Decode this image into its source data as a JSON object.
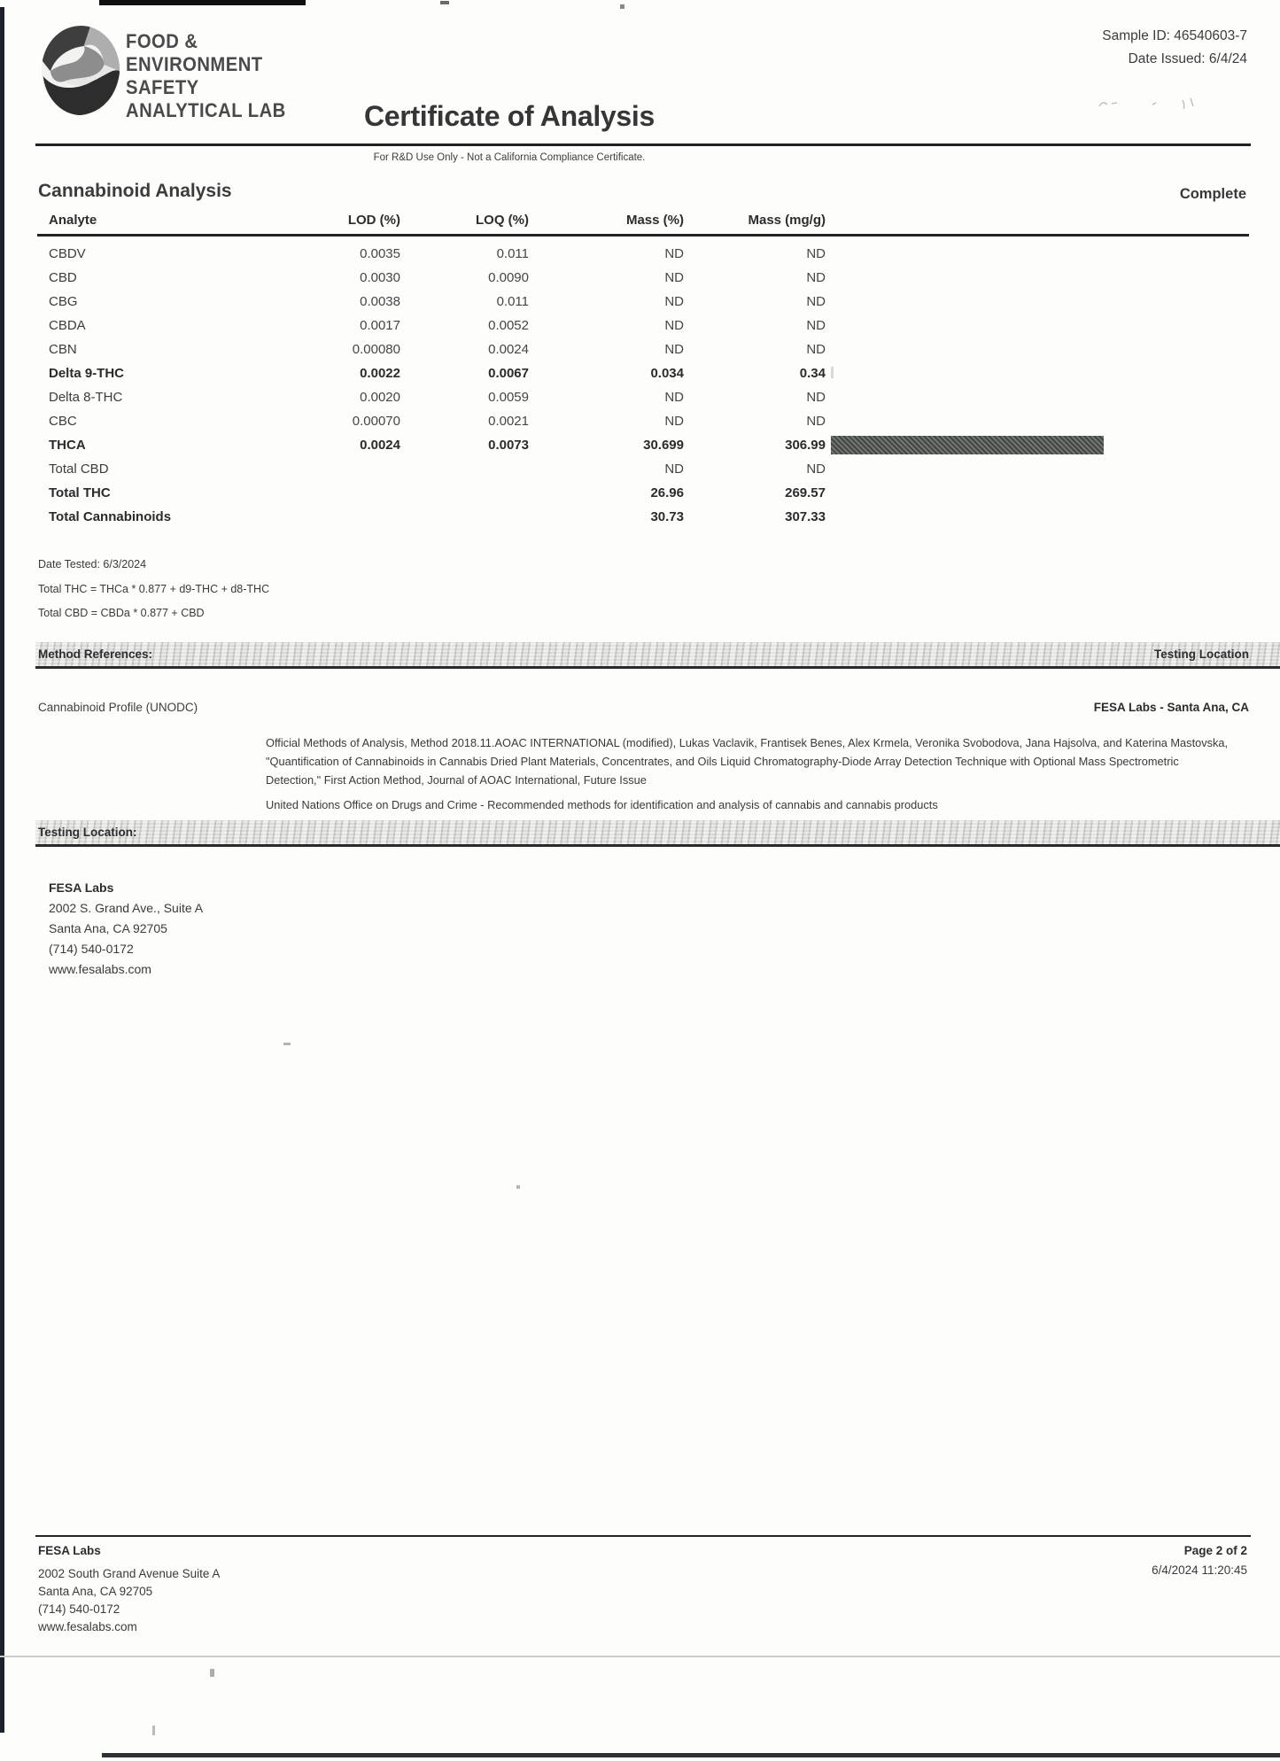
{
  "header": {
    "lab_name_lines": [
      "FOOD &",
      "ENVIRONMENT",
      "SAFETY",
      "ANALYTICAL LAB"
    ],
    "title": "Certificate of Analysis",
    "sample_id": "Sample ID: 46540603-7",
    "date_issued": "Date Issued: 6/4/24",
    "disclaimer": "For R&D Use Only - Not a California Compliance Certificate."
  },
  "section": {
    "title": "Cannabinoid Analysis",
    "status": "Complete"
  },
  "table": {
    "columns": [
      "Analyte",
      "LOD (%)",
      "LOQ (%)",
      "Mass (%)",
      "Mass (mg/g)"
    ],
    "rows": [
      {
        "analyte": "CBDV",
        "lod": "0.0035",
        "loq": "0.011",
        "mass_pct": "ND",
        "mass_mgg": "ND",
        "bold": false,
        "bar": false
      },
      {
        "analyte": "CBD",
        "lod": "0.0030",
        "loq": "0.0090",
        "mass_pct": "ND",
        "mass_mgg": "ND",
        "bold": false,
        "bar": false
      },
      {
        "analyte": "CBG",
        "lod": "0.0038",
        "loq": "0.011",
        "mass_pct": "ND",
        "mass_mgg": "ND",
        "bold": false,
        "bar": false
      },
      {
        "analyte": "CBDA",
        "lod": "0.0017",
        "loq": "0.0052",
        "mass_pct": "ND",
        "mass_mgg": "ND",
        "bold": false,
        "bar": false
      },
      {
        "analyte": "CBN",
        "lod": "0.00080",
        "loq": "0.0024",
        "mass_pct": "ND",
        "mass_mgg": "ND",
        "bold": false,
        "bar": false
      },
      {
        "analyte": "Delta 9-THC",
        "lod": "0.0022",
        "loq": "0.0067",
        "mass_pct": "0.034",
        "mass_mgg": "0.34",
        "bold": true,
        "bar": false
      },
      {
        "analyte": "Delta 8-THC",
        "lod": "0.0020",
        "loq": "0.0059",
        "mass_pct": "ND",
        "mass_mgg": "ND",
        "bold": false,
        "bar": false
      },
      {
        "analyte": "CBC",
        "lod": "0.00070",
        "loq": "0.0021",
        "mass_pct": "ND",
        "mass_mgg": "ND",
        "bold": false,
        "bar": false
      },
      {
        "analyte": "THCA",
        "lod": "0.0024",
        "loq": "0.0073",
        "mass_pct": "30.699",
        "mass_mgg": "306.99",
        "bold": true,
        "bar": true
      },
      {
        "analyte": "Total CBD",
        "lod": "",
        "loq": "",
        "mass_pct": "ND",
        "mass_mgg": "ND",
        "bold": false,
        "bar": false
      },
      {
        "analyte": "Total THC",
        "lod": "",
        "loq": "",
        "mass_pct": "26.96",
        "mass_mgg": "269.57",
        "bold": true,
        "bar": false
      },
      {
        "analyte": "Total Cannabinoids",
        "lod": "",
        "loq": "",
        "mass_pct": "30.73",
        "mass_mgg": "307.33",
        "bold": true,
        "bar": false
      }
    ]
  },
  "notes": {
    "date_tested": "Date Tested: 6/3/2024",
    "total_thc_formula": "Total THC = THCa * 0.877 + d9-THC + d8-THC",
    "total_cbd_formula": "Total CBD = CBDa * 0.877 + CBD"
  },
  "method_references": {
    "heading": "Method References:",
    "heading_right": "Testing Location",
    "profile_label": "Cannabinoid Profile (UNODC)",
    "location_value": "FESA Labs - Santa Ana, CA",
    "reference_text": "Official Methods of Analysis, Method 2018.11.AOAC INTERNATIONAL (modified), Lukas Vaclavik, Frantisek Benes, Alex Krmela, Veronika Svobodova, Jana Hajsolva, and Katerina Mastovska, \"Quantification of Cannabinoids in Cannabis Dried Plant Materials, Concentrates, and Oils Liquid Chromatography-Diode Array Detection Technique with Optional Mass Spectrometric Detection,\" First Action Method, Journal of AOAC International, Future Issue",
    "un_reference": "United Nations Office on Drugs and Crime - Recommended methods for identification and analysis of cannabis and cannabis products"
  },
  "testing_location": {
    "heading": "Testing Location:",
    "name": "FESA Labs",
    "address1": "2002 S. Grand Ave., Suite A",
    "address2": "Santa Ana, CA 92705",
    "phone": "(714) 540-0172",
    "website": "www.fesalabs.com"
  },
  "footer": {
    "name": "FESA Labs",
    "address1": "2002 South Grand Avenue Suite A",
    "address2": "Santa Ana, CA 92705",
    "phone": "(714) 540-0172",
    "website": "www.fesalabs.com",
    "page": "Page 2 of 2",
    "timestamp": "6/4/2024 11:20:45"
  },
  "colors": {
    "thca_bar": "#5c615d"
  }
}
